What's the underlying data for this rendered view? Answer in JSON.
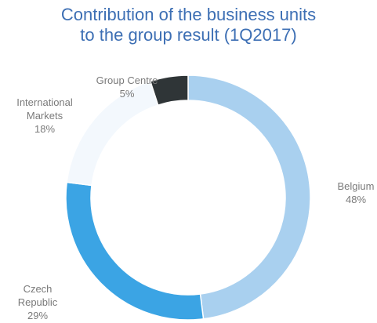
{
  "chart_data": {
    "type": "donut",
    "title": [
      "Contribution of the business units",
      "to the group result (1Q2017)"
    ],
    "categories": [
      "Belgium",
      "Czech Republic",
      "International Markets",
      "Group Centre"
    ],
    "values": [
      48,
      29,
      18,
      5
    ],
    "value_labels": [
      "48%",
      "29%",
      "18%",
      "5%"
    ],
    "colors": [
      "#a9d0ef",
      "#3ba4e4",
      "#f3f8fd",
      "#2f3537"
    ]
  }
}
